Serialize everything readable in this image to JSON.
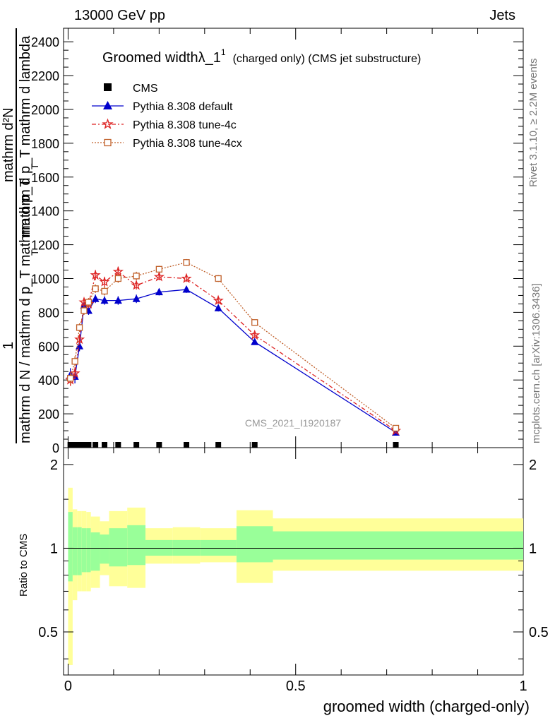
{
  "header": {
    "left": "13000 GeV pp",
    "right": "Jets"
  },
  "title": {
    "main": "Groomed widthλ_1",
    "sup": "1",
    "sub": "(charged only) (CMS jet substructure)"
  },
  "side_labels": {
    "rivet": "Rivet 3.1.10, ≥ 2.2M events",
    "mcplots": "mcplots.cern.ch [arXiv:1306.3436]"
  },
  "watermark": "CMS_2021_I1920187",
  "ylabel_main": {
    "line_a": "mathrm d²N",
    "line_b": "mathrm d p_T mathrm d lambda",
    "frac_denominator": "mathrm d N / mathrm d p_T mathrm d p_T",
    "frac_numerator": "1",
    "t_sub": "T"
  },
  "ratio_ylabel": "Ratio to CMS",
  "xlabel": "groomed width (charged-only)",
  "legend": {
    "cms": "CMS",
    "default": "Pythia 8.308 default",
    "tune4c": "Pythia 8.308 tune-4c",
    "tune4cx": "Pythia 8.308 tune-4cx"
  },
  "chart_data": {
    "type": "line",
    "xlim": [
      -0.01,
      1.0
    ],
    "ylim": [
      0,
      2480
    ],
    "ratio_ylim": [
      0.35,
      2.3
    ],
    "x": [
      0.005,
      0.015,
      0.025,
      0.035,
      0.045,
      0.06,
      0.08,
      0.11,
      0.15,
      0.2,
      0.26,
      0.33,
      0.41,
      0.72
    ],
    "x_ticks_main": [
      0,
      0.5,
      1
    ],
    "x_tick_labels": [
      "0",
      "0.5",
      "1"
    ],
    "y_ticks": [
      0,
      200,
      400,
      600,
      800,
      1000,
      1200,
      1400,
      1600,
      1800,
      2000,
      2200,
      2400
    ],
    "y_tick_labels": [
      "0",
      "200",
      "400",
      "600",
      "800",
      "1000",
      "1200",
      "1400",
      "1600",
      "1800",
      "2000",
      "2200",
      "2400"
    ],
    "ratio_ticks": [
      0.5,
      1,
      2
    ],
    "ratio_tick_labels": [
      "0.5",
      "1",
      "2"
    ],
    "series": [
      {
        "name": "CMS",
        "values": [
          0,
          0,
          0,
          0,
          0,
          0,
          0,
          0,
          0,
          0,
          0,
          0,
          0,
          0
        ],
        "color": "#000000"
      },
      {
        "name": "Pythia 8.308 default",
        "values": [
          430,
          420,
          600,
          840,
          810,
          880,
          870,
          870,
          880,
          920,
          935,
          825,
          625,
          90
        ],
        "errors": [
          40,
          40,
          30,
          25,
          25,
          25,
          25,
          25,
          25,
          20,
          20,
          20,
          15,
          10
        ],
        "color": "#0000cc"
      },
      {
        "name": "Pythia 8.308 tune-4c",
        "values": [
          400,
          440,
          640,
          860,
          850,
          1020,
          980,
          1040,
          960,
          1010,
          1000,
          870,
          665,
          100
        ],
        "errors": [
          35,
          35,
          30,
          25,
          25,
          30,
          30,
          30,
          25,
          20,
          20,
          20,
          15,
          10
        ],
        "color": "#dd2222"
      },
      {
        "name": "Pythia 8.308 tune-4cx",
        "values": [
          410,
          510,
          710,
          810,
          860,
          940,
          925,
          1000,
          1015,
          1055,
          1095,
          1000,
          740,
          115
        ],
        "errors": [
          35,
          30,
          25,
          25,
          25,
          25,
          25,
          25,
          25,
          20,
          20,
          20,
          15,
          10
        ],
        "color": "#c0602a"
      }
    ],
    "ratio_bands": {
      "x_edges": [
        0,
        0.01,
        0.02,
        0.03,
        0.04,
        0.05,
        0.07,
        0.09,
        0.13,
        0.17,
        0.23,
        0.29,
        0.37,
        0.45,
        1.0
      ],
      "green_low": [
        0.76,
        0.8,
        0.8,
        0.82,
        0.82,
        0.83,
        0.88,
        0.86,
        0.87,
        0.94,
        0.94,
        0.94,
        0.89,
        0.91
      ],
      "green_high": [
        1.35,
        1.19,
        1.19,
        1.18,
        1.18,
        1.14,
        1.12,
        1.18,
        1.21,
        1.07,
        1.07,
        1.07,
        1.2,
        1.15
      ],
      "yellow_low": [
        0.38,
        0.65,
        0.7,
        0.7,
        0.7,
        0.72,
        0.8,
        0.73,
        0.72,
        0.88,
        0.88,
        0.89,
        0.75,
        0.83
      ],
      "yellow_high": [
        1.65,
        1.38,
        1.36,
        1.36,
        1.35,
        1.3,
        1.25,
        1.36,
        1.4,
        1.18,
        1.19,
        1.18,
        1.37,
        1.28
      ]
    },
    "grid": false,
    "legend_position": "top-left"
  }
}
